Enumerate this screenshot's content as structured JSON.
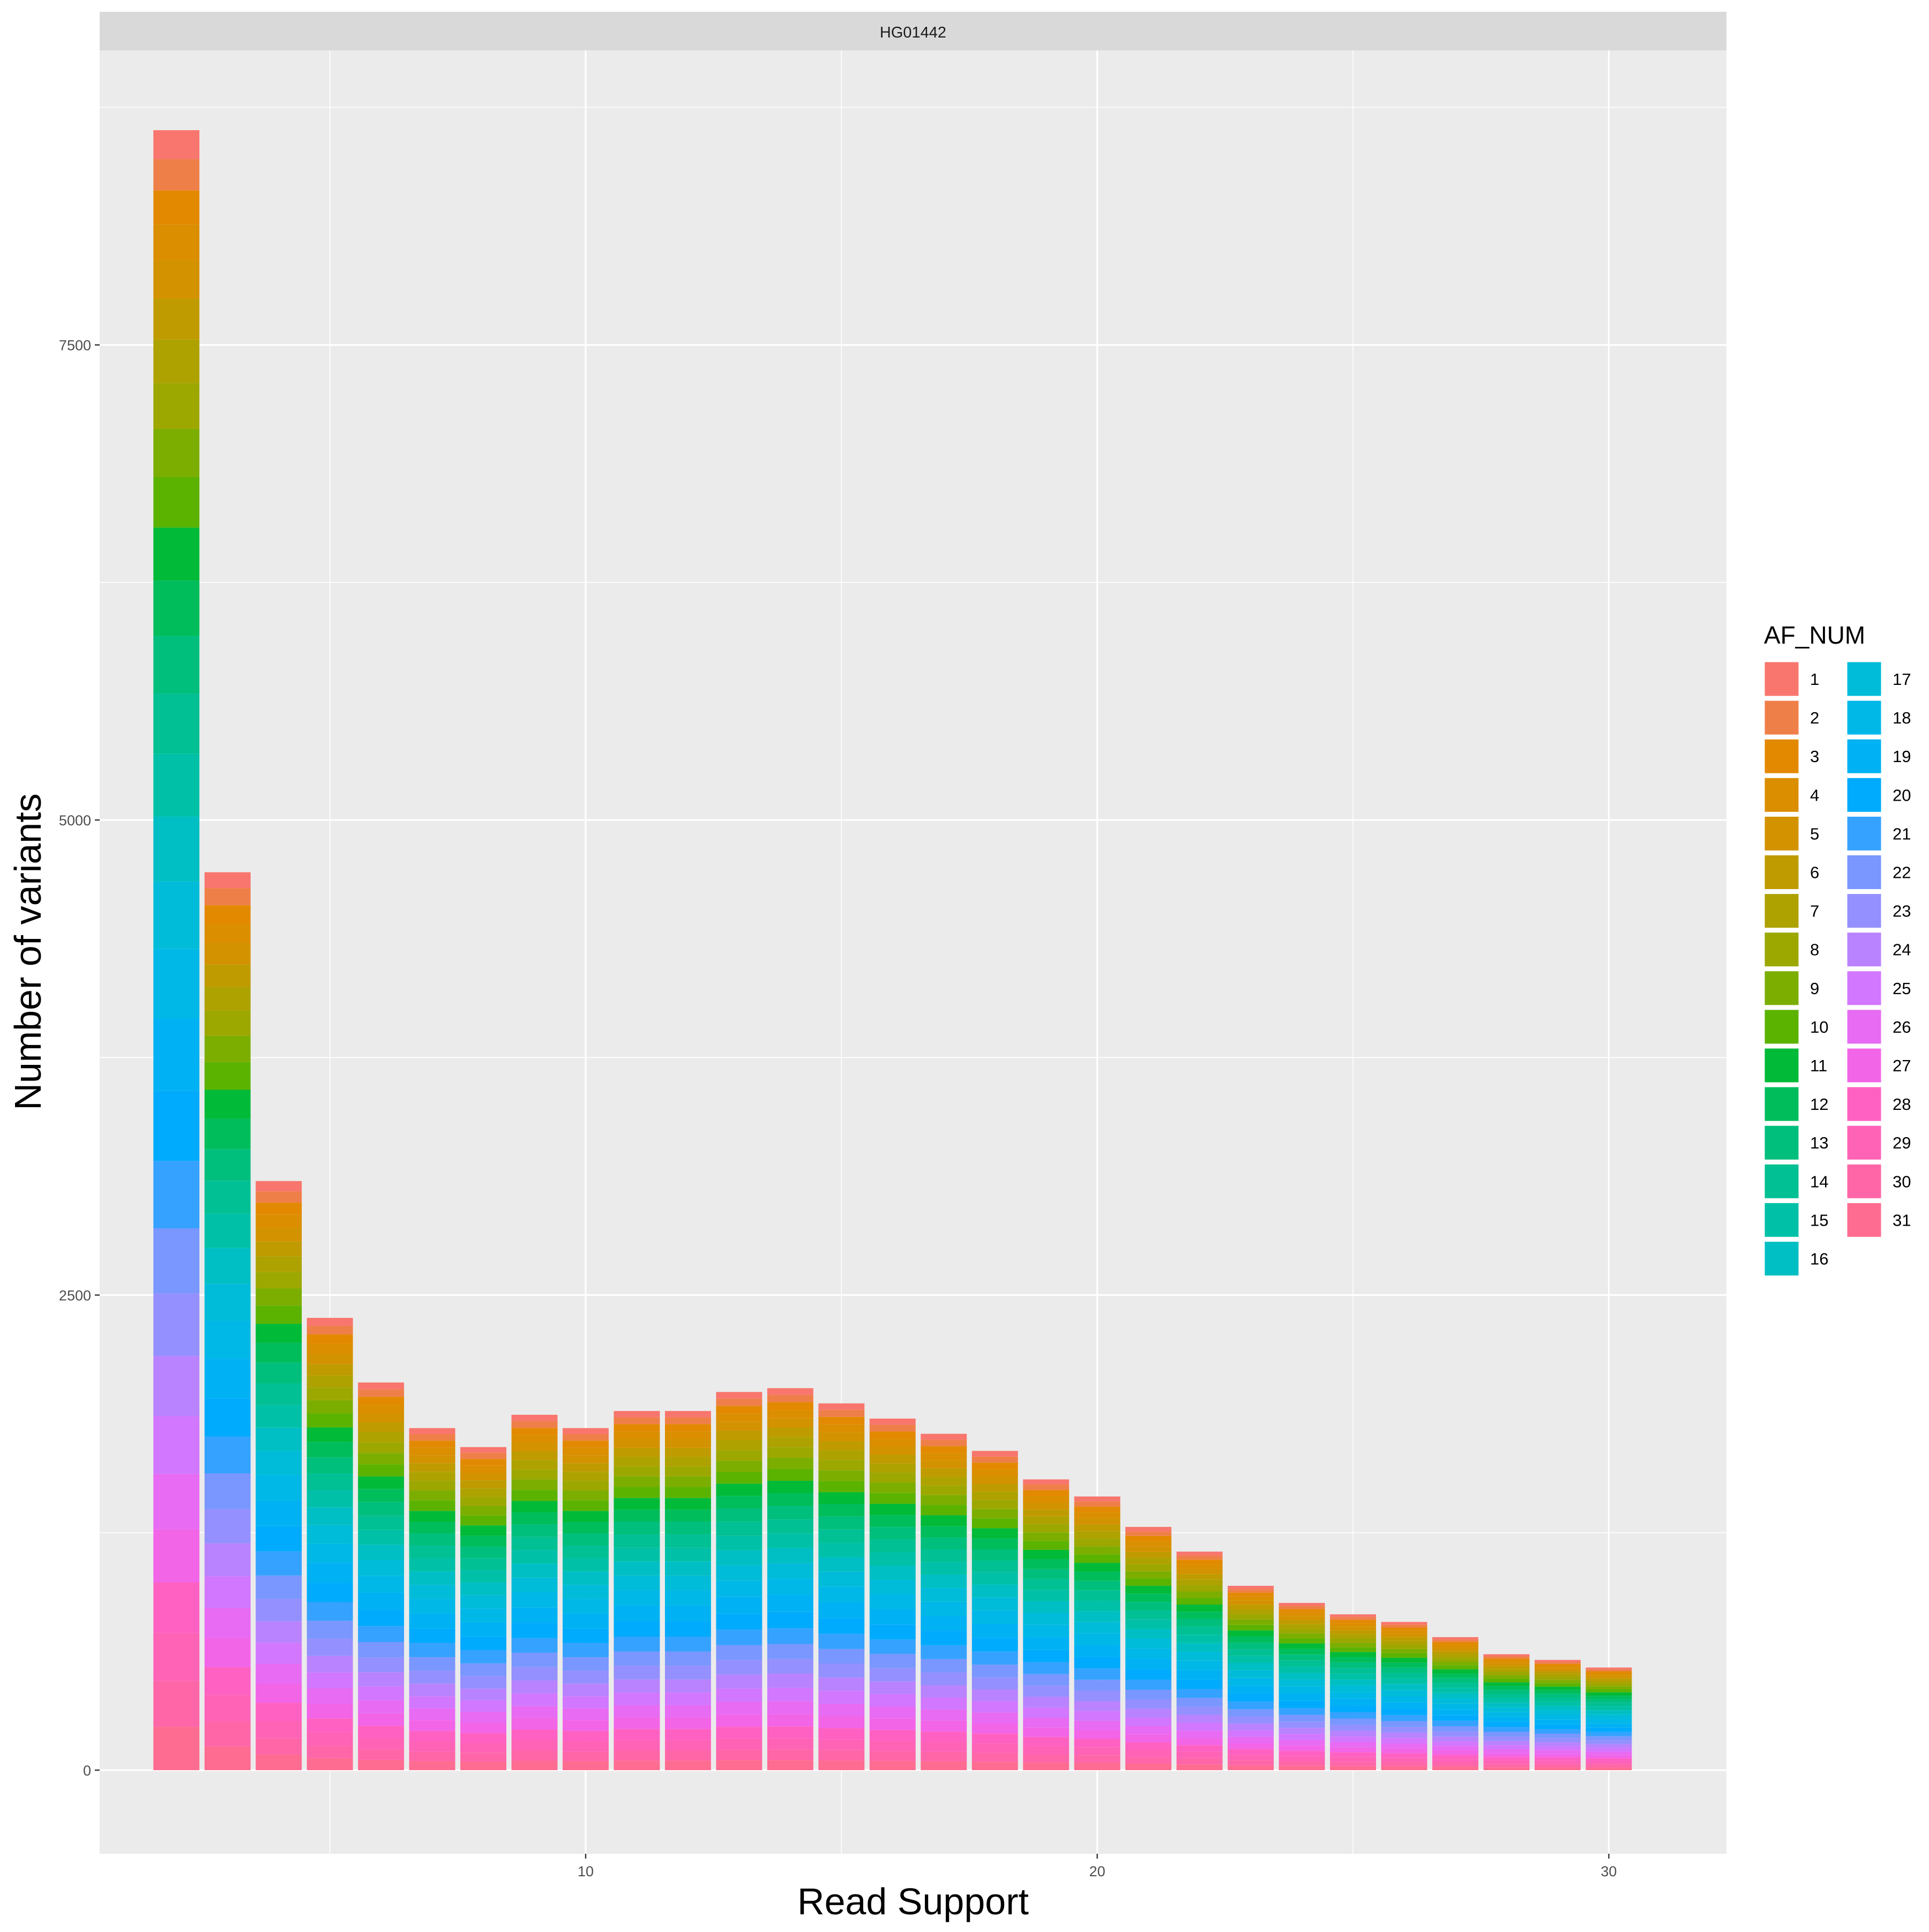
{
  "chart_data": {
    "type": "bar",
    "stacked": true,
    "facet_label": "HG01442",
    "xlabel": "Read Support",
    "ylabel": "Number of variants",
    "x_ticks": [
      10,
      20,
      30
    ],
    "y_ticks": [
      0,
      2500,
      5000,
      7500
    ],
    "xlim": [
      0.5,
      32.3
    ],
    "ylim": [
      -440,
      9050
    ],
    "grid": true,
    "legend_title": "AF_NUM",
    "legend_position": "right",
    "x": [
      2,
      3,
      4,
      5,
      6,
      7,
      8,
      9,
      10,
      11,
      12,
      13,
      14,
      15,
      16,
      17,
      18,
      19,
      20,
      21,
      22,
      23,
      24,
      25,
      26,
      27,
      28,
      29,
      30
    ],
    "totals": [
      8630,
      4725,
      3100,
      2380,
      2040,
      1800,
      1700,
      1870,
      1800,
      1890,
      1890,
      1990,
      2010,
      1930,
      1850,
      1770,
      1680,
      1530,
      1440,
      1280,
      1150,
      970,
      880,
      820,
      780,
      700,
      610,
      580,
      540
    ],
    "series_names": [
      "1",
      "2",
      "3",
      "4",
      "5",
      "6",
      "7",
      "8",
      "9",
      "10",
      "11",
      "12",
      "13",
      "14",
      "15",
      "16",
      "17",
      "18",
      "19",
      "20",
      "21",
      "22",
      "23",
      "24",
      "25",
      "26",
      "27",
      "28",
      "29",
      "30",
      "31"
    ],
    "series_colors": [
      "#F8766D",
      "#EF7F49",
      "#E38900",
      "#DB8E00",
      "#D39200",
      "#BF9B00",
      "#AEA200",
      "#9CA700",
      "#7CAE00",
      "#5BB300",
      "#00BA38",
      "#00BD5C",
      "#00BF7D",
      "#00C094",
      "#00C1A7",
      "#00BFC4",
      "#00BCD8",
      "#00B8E7",
      "#00B2F3",
      "#00ABFD",
      "#35A2FF",
      "#7997FF",
      "#9590FF",
      "#B983FF",
      "#D277FF",
      "#E76BF3",
      "#F265E7",
      "#FF61C3",
      "#FF63B6",
      "#FF66A8",
      "#FF6C91"
    ]
  }
}
